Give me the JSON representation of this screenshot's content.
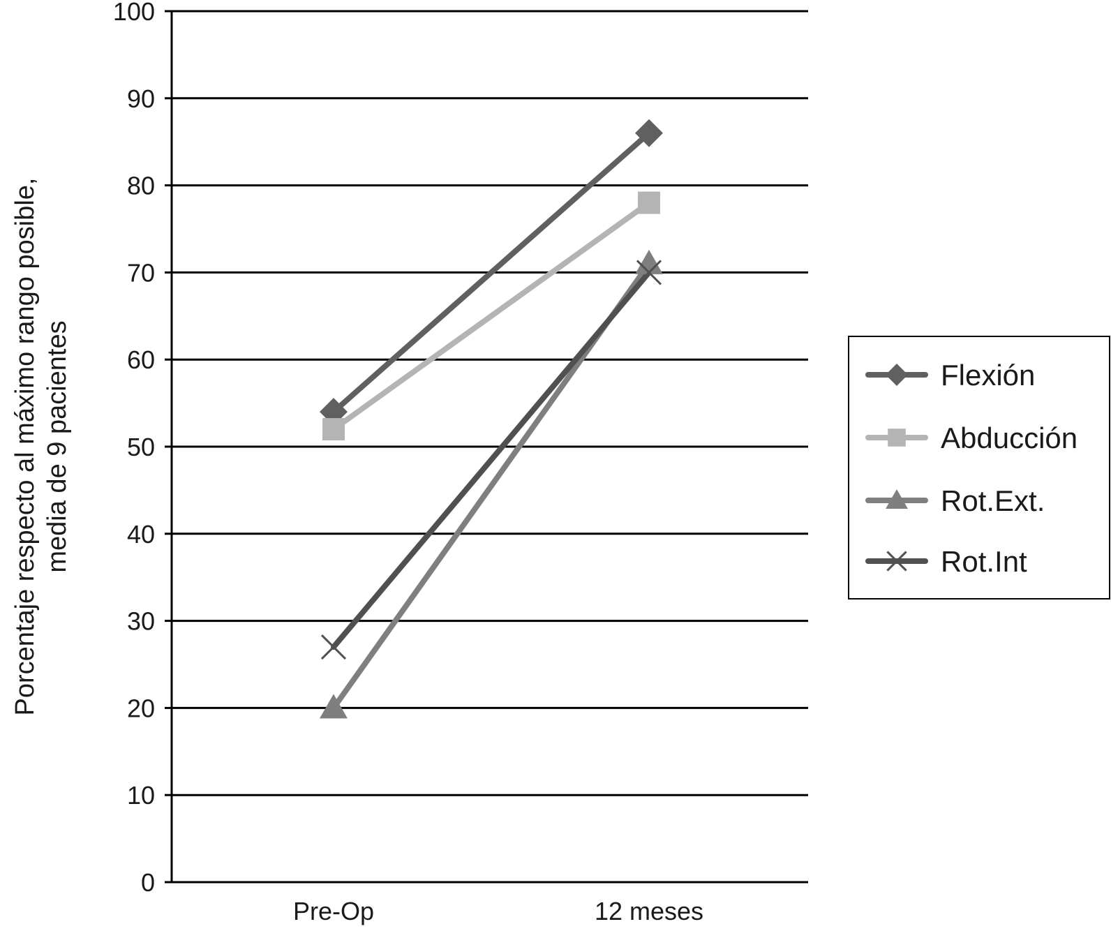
{
  "chart_data": {
    "type": "line",
    "title": "",
    "xlabel": "",
    "ylabel_lines": [
      "Porcentaje respecto al máximo rango posible,",
      "media de 9 pacientes"
    ],
    "categories": [
      "Pre-Op",
      "12 meses"
    ],
    "ylim": [
      0,
      100
    ],
    "yticks": [
      "0",
      "10",
      "20",
      "30",
      "40",
      "50",
      "60",
      "70",
      "80",
      "90",
      "100"
    ],
    "grid": true,
    "legend_position": "right",
    "series": [
      {
        "name": "Flexión",
        "values": [
          54,
          86
        ],
        "color": "#606060",
        "marker": "diamond"
      },
      {
        "name": "Abducción",
        "values": [
          52,
          78
        ],
        "color": "#b4b4b4",
        "marker": "square"
      },
      {
        "name": "Rot.Ext.",
        "values": [
          20,
          71
        ],
        "color": "#7f7f7f",
        "marker": "triangle"
      },
      {
        "name": "Rot.Int",
        "values": [
          27,
          70
        ],
        "color": "#505050",
        "marker": "x"
      }
    ]
  }
}
